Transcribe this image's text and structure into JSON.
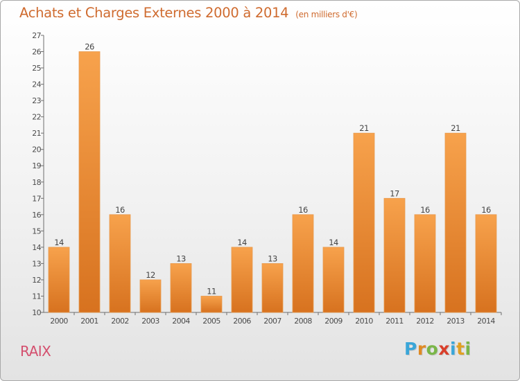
{
  "title": "Achats et Charges Externes 2000 à 2014",
  "unit_note": "(en milliers d'€)",
  "place": "RAIX",
  "logo": {
    "letters": [
      "P",
      "r",
      "o",
      "x",
      "i",
      "t",
      "i"
    ],
    "colors": [
      "#3aa6d8",
      "#e08a23",
      "#7ab648",
      "#d93f2b",
      "#3aa6d8",
      "#e0a023",
      "#7ab648"
    ]
  },
  "colors": {
    "bar_light": "#f7a24c",
    "bar_dark": "#d7721f",
    "title": "#cf6b2f",
    "place": "#d44f6e"
  },
  "chart_data": {
    "type": "bar",
    "categories": [
      "2000",
      "2001",
      "2002",
      "2003",
      "2004",
      "2005",
      "2006",
      "2007",
      "2008",
      "2009",
      "2010",
      "2011",
      "2012",
      "2013",
      "2014"
    ],
    "values": [
      14,
      26,
      16,
      12,
      13,
      11,
      14,
      13,
      16,
      14,
      21,
      17,
      16,
      21,
      16
    ],
    "data_labels": [
      "14",
      "26",
      "16",
      "12",
      "13",
      "11",
      "14",
      "13",
      "16",
      "14",
      "21",
      "17",
      "16",
      "21",
      "16"
    ],
    "ylim": [
      10,
      27
    ],
    "yticks": [
      10,
      11,
      12,
      13,
      14,
      15,
      16,
      17,
      18,
      19,
      20,
      21,
      22,
      23,
      24,
      25,
      26,
      27
    ],
    "grid": false,
    "xlabel": "",
    "ylabel": ""
  }
}
